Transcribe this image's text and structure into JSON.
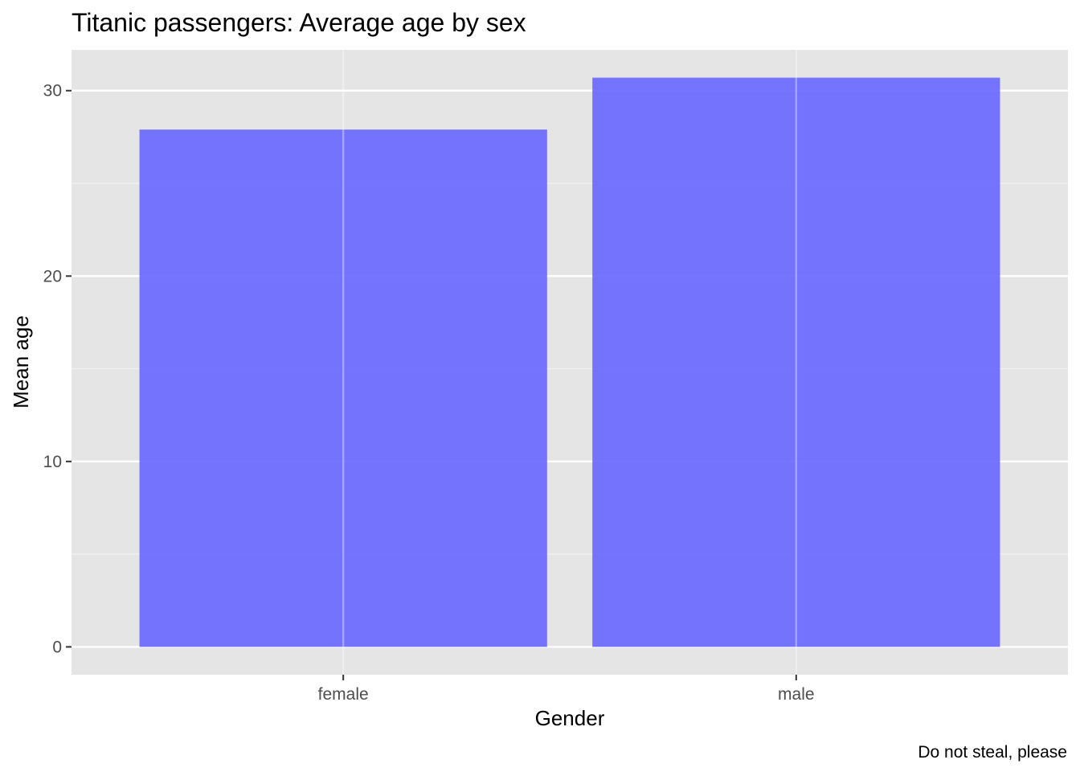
{
  "chart_data": {
    "type": "bar",
    "title": "Titanic passengers: Average age by sex",
    "xlabel": "Gender",
    "ylabel": "Mean age",
    "categories": [
      "female",
      "male"
    ],
    "values": [
      27.9,
      30.7
    ],
    "ylim": [
      -1.5,
      32.2
    ],
    "yticks": [
      0,
      10,
      20,
      30
    ],
    "ytick_labels": [
      "0",
      "10",
      "20",
      "30"
    ],
    "caption": "Do not steal, please",
    "bar_color": "#6666ff",
    "bar_opacity": 0.9,
    "panel_background": "#e5e5e5",
    "grid": true,
    "legend": "none"
  }
}
